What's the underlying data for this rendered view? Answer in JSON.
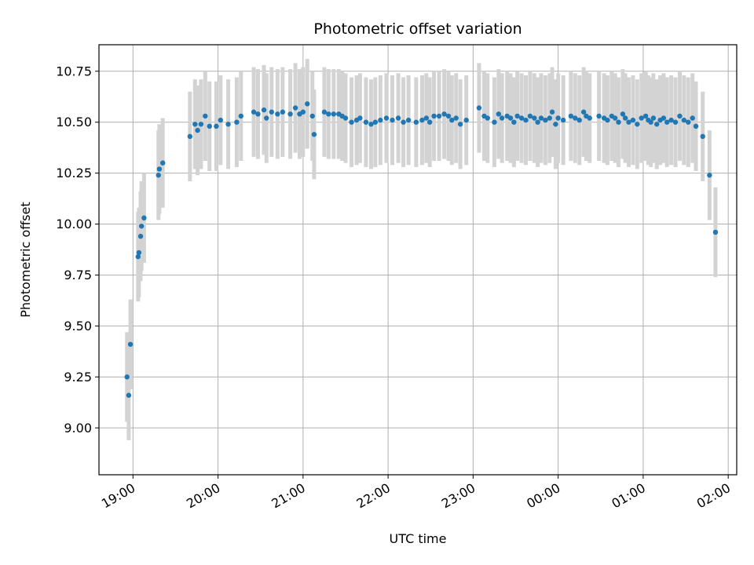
{
  "chart_data": {
    "type": "scatter",
    "title": "Photometric offset variation",
    "xlabel": "UTC time",
    "ylabel": "Photometric offset",
    "x_unit": "UTC hours (times past midnight written as 24+)",
    "xlim": [
      18.6,
      26.1
    ],
    "ylim": [
      8.77,
      10.88
    ],
    "grid": true,
    "x_ticks": [
      {
        "value": 19,
        "label": "19:00"
      },
      {
        "value": 20,
        "label": "20:00"
      },
      {
        "value": 21,
        "label": "21:00"
      },
      {
        "value": 22,
        "label": "22:00"
      },
      {
        "value": 23,
        "label": "23:00"
      },
      {
        "value": 24,
        "label": "00:00"
      },
      {
        "value": 25,
        "label": "01:00"
      },
      {
        "value": 26,
        "label": "02:00"
      }
    ],
    "y_ticks": [
      {
        "value": 9.0,
        "label": "9.00"
      },
      {
        "value": 9.25,
        "label": "9.25"
      },
      {
        "value": 9.5,
        "label": "9.50"
      },
      {
        "value": 9.75,
        "label": "9.75"
      },
      {
        "value": 10.0,
        "label": "10.00"
      },
      {
        "value": 10.25,
        "label": "10.25"
      },
      {
        "value": 10.5,
        "label": "10.50"
      },
      {
        "value": 10.75,
        "label": "10.75"
      }
    ],
    "colors": {
      "points": "#1f77b4",
      "errorbars": "#d3d3d3",
      "grid": "#b0b0b0"
    },
    "errorbar_halfwidth": 0.22,
    "points": [
      [
        18.93,
        9.25
      ],
      [
        18.95,
        9.16
      ],
      [
        18.97,
        9.41
      ],
      [
        19.06,
        9.84
      ],
      [
        19.07,
        9.86
      ],
      [
        19.09,
        9.94
      ],
      [
        19.1,
        9.99
      ],
      [
        19.13,
        10.03
      ],
      [
        19.3,
        10.24
      ],
      [
        19.31,
        10.27
      ],
      [
        19.35,
        10.3
      ],
      [
        19.67,
        10.43
      ],
      [
        19.73,
        10.49
      ],
      [
        19.76,
        10.46
      ],
      [
        19.8,
        10.49
      ],
      [
        19.85,
        10.53
      ],
      [
        19.9,
        10.48
      ],
      [
        19.98,
        10.48
      ],
      [
        20.03,
        10.51
      ],
      [
        20.12,
        10.49
      ],
      [
        20.22,
        10.5
      ],
      [
        20.27,
        10.53
      ],
      [
        20.42,
        10.55
      ],
      [
        20.47,
        10.54
      ],
      [
        20.54,
        10.56
      ],
      [
        20.57,
        10.52
      ],
      [
        20.63,
        10.55
      ],
      [
        20.7,
        10.54
      ],
      [
        20.76,
        10.55
      ],
      [
        20.85,
        10.54
      ],
      [
        20.91,
        10.57
      ],
      [
        20.96,
        10.54
      ],
      [
        21.0,
        10.55
      ],
      [
        21.05,
        10.59
      ],
      [
        21.11,
        10.53
      ],
      [
        21.13,
        10.44
      ],
      [
        21.25,
        10.55
      ],
      [
        21.3,
        10.54
      ],
      [
        21.36,
        10.54
      ],
      [
        21.42,
        10.54
      ],
      [
        21.46,
        10.53
      ],
      [
        21.5,
        10.52
      ],
      [
        21.57,
        10.5
      ],
      [
        21.63,
        10.51
      ],
      [
        21.67,
        10.52
      ],
      [
        21.74,
        10.5
      ],
      [
        21.8,
        10.49
      ],
      [
        21.85,
        10.5
      ],
      [
        21.91,
        10.51
      ],
      [
        21.98,
        10.52
      ],
      [
        22.05,
        10.51
      ],
      [
        22.12,
        10.52
      ],
      [
        22.18,
        10.5
      ],
      [
        22.24,
        10.51
      ],
      [
        22.33,
        10.5
      ],
      [
        22.4,
        10.51
      ],
      [
        22.45,
        10.52
      ],
      [
        22.49,
        10.5
      ],
      [
        22.54,
        10.53
      ],
      [
        22.6,
        10.53
      ],
      [
        22.66,
        10.54
      ],
      [
        22.71,
        10.53
      ],
      [
        22.75,
        10.51
      ],
      [
        22.8,
        10.52
      ],
      [
        22.85,
        10.49
      ],
      [
        22.92,
        10.51
      ],
      [
        23.07,
        10.57
      ],
      [
        23.13,
        10.53
      ],
      [
        23.17,
        10.52
      ],
      [
        23.25,
        10.5
      ],
      [
        23.3,
        10.54
      ],
      [
        23.34,
        10.52
      ],
      [
        23.4,
        10.53
      ],
      [
        23.44,
        10.52
      ],
      [
        23.48,
        10.5
      ],
      [
        23.52,
        10.53
      ],
      [
        23.57,
        10.52
      ],
      [
        23.62,
        10.51
      ],
      [
        23.67,
        10.53
      ],
      [
        23.72,
        10.52
      ],
      [
        23.76,
        10.5
      ],
      [
        23.8,
        10.52
      ],
      [
        23.85,
        10.51
      ],
      [
        23.9,
        10.52
      ],
      [
        23.93,
        10.55
      ],
      [
        23.97,
        10.49
      ],
      [
        24.0,
        10.52
      ],
      [
        24.06,
        10.51
      ],
      [
        24.15,
        10.53
      ],
      [
        24.2,
        10.52
      ],
      [
        24.25,
        10.51
      ],
      [
        24.3,
        10.55
      ],
      [
        24.33,
        10.53
      ],
      [
        24.37,
        10.52
      ],
      [
        24.48,
        10.53
      ],
      [
        24.54,
        10.52
      ],
      [
        24.58,
        10.51
      ],
      [
        24.63,
        10.53
      ],
      [
        24.67,
        10.52
      ],
      [
        24.71,
        10.5
      ],
      [
        24.76,
        10.54
      ],
      [
        24.79,
        10.52
      ],
      [
        24.83,
        10.5
      ],
      [
        24.88,
        10.51
      ],
      [
        24.93,
        10.49
      ],
      [
        24.98,
        10.52
      ],
      [
        25.03,
        10.53
      ],
      [
        25.06,
        10.51
      ],
      [
        25.09,
        10.5
      ],
      [
        25.12,
        10.52
      ],
      [
        25.16,
        10.49
      ],
      [
        25.2,
        10.51
      ],
      [
        25.24,
        10.52
      ],
      [
        25.28,
        10.5
      ],
      [
        25.33,
        10.51
      ],
      [
        25.38,
        10.5
      ],
      [
        25.43,
        10.53
      ],
      [
        25.48,
        10.51
      ],
      [
        25.53,
        10.5
      ],
      [
        25.58,
        10.52
      ],
      [
        25.62,
        10.48
      ],
      [
        25.7,
        10.43
      ],
      [
        25.78,
        10.24
      ],
      [
        25.85,
        9.96
      ]
    ]
  }
}
